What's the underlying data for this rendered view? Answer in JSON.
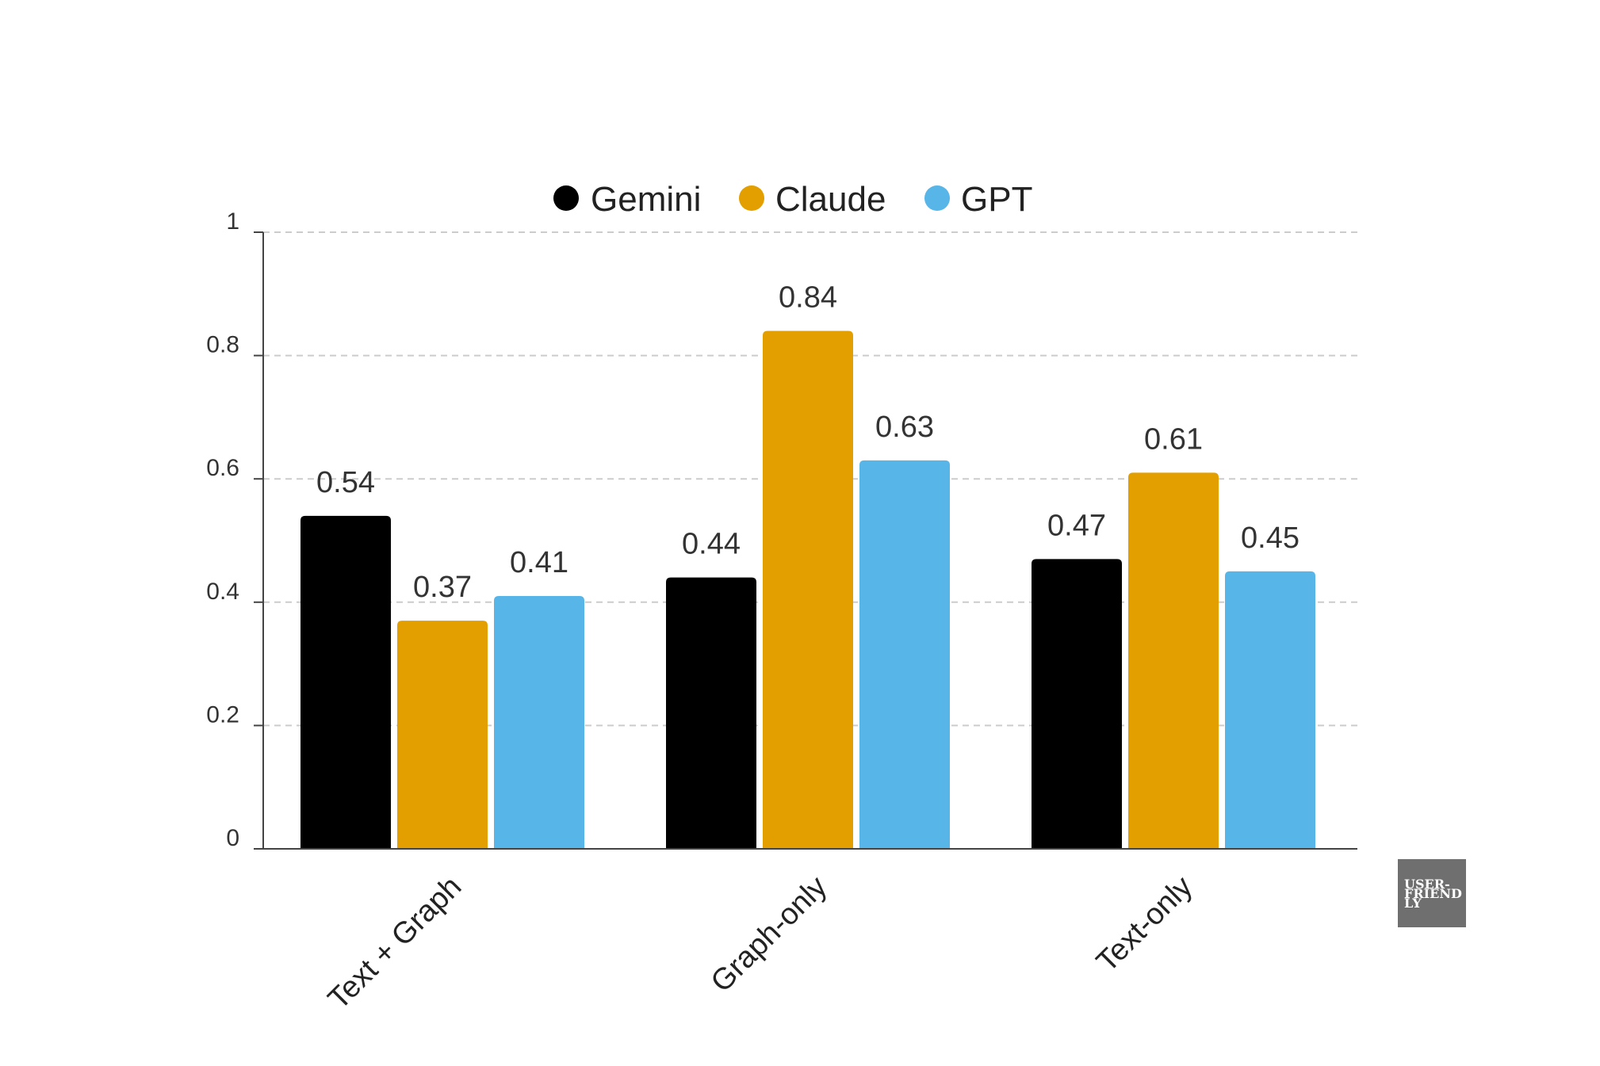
{
  "chart_data": {
    "type": "bar",
    "categories": [
      "Text + Graph",
      "Graph-only",
      "Text-only"
    ],
    "series": [
      {
        "name": "Gemini",
        "color": "#000000",
        "values": [
          0.54,
          0.44,
          0.47
        ]
      },
      {
        "name": "Claude",
        "color": "#E39F00",
        "values": [
          0.37,
          0.84,
          0.61
        ]
      },
      {
        "name": "GPT",
        "color": "#57B5E8",
        "values": [
          0.41,
          0.63,
          0.45
        ]
      }
    ],
    "value_labels": [
      [
        "0.54",
        "0.44",
        "0.47"
      ],
      [
        "0.37",
        "0.84",
        "0.61"
      ],
      [
        "0.41",
        "0.63",
        "0.45"
      ]
    ],
    "ylim": [
      0,
      1
    ],
    "yticks": [
      0,
      0.2,
      0.4,
      0.6,
      0.8,
      1
    ],
    "ytick_labels": [
      "0",
      "0.2",
      "0.4",
      "0.6",
      "0.8",
      "1"
    ],
    "grid": true,
    "legend_position": "top-center",
    "title": "",
    "xlabel": "",
    "ylabel": ""
  },
  "logo": {
    "text_lines": [
      "USER-",
      "FRIEND",
      "LY"
    ],
    "background": "#6f6f6f"
  }
}
